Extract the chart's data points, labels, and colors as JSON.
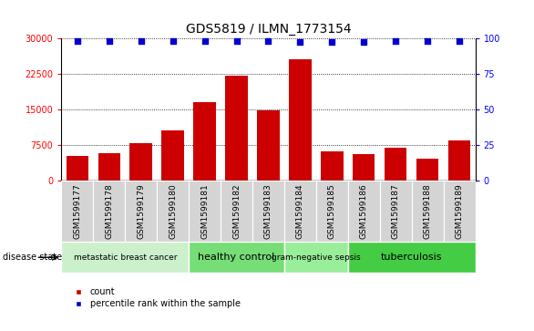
{
  "title": "GDS5819 / ILMN_1773154",
  "samples": [
    "GSM1599177",
    "GSM1599178",
    "GSM1599179",
    "GSM1599180",
    "GSM1599181",
    "GSM1599182",
    "GSM1599183",
    "GSM1599184",
    "GSM1599185",
    "GSM1599186",
    "GSM1599187",
    "GSM1599188",
    "GSM1599189"
  ],
  "counts": [
    5200,
    5800,
    7800,
    10500,
    16500,
    22000,
    14700,
    25500,
    6200,
    5500,
    6800,
    4500,
    8500
  ],
  "percentile_ranks": [
    98,
    98,
    98,
    98,
    98,
    98,
    98,
    97,
    97,
    97,
    98,
    98,
    98
  ],
  "disease_groups": [
    {
      "label": "metastatic breast cancer",
      "start": 0,
      "end": 4,
      "color": "#ccf0cc"
    },
    {
      "label": "healthy control",
      "start": 4,
      "end": 7,
      "color": "#77dd77"
    },
    {
      "label": "gram-negative sepsis",
      "start": 7,
      "end": 9,
      "color": "#99ee99"
    },
    {
      "label": "tuberculosis",
      "start": 9,
      "end": 13,
      "color": "#44cc44"
    }
  ],
  "bar_color": "#cc0000",
  "dot_color": "#0000cc",
  "left_ylim": [
    0,
    30000
  ],
  "right_ylim": [
    0,
    100
  ],
  "left_yticks": [
    0,
    7500,
    15000,
    22500,
    30000
  ],
  "right_yticks": [
    0,
    25,
    50,
    75,
    100
  ],
  "sample_bg_color": "#cccccc",
  "sample_cell_color": "#d4d4d4",
  "plot_bg": "#ffffff",
  "title_fontsize": 10,
  "tick_fontsize": 7,
  "sample_fontsize": 6.5,
  "group_fontsize_large": 8,
  "group_fontsize_small": 6.5,
  "legend_fontsize": 7,
  "disease_label_fontsize": 7
}
